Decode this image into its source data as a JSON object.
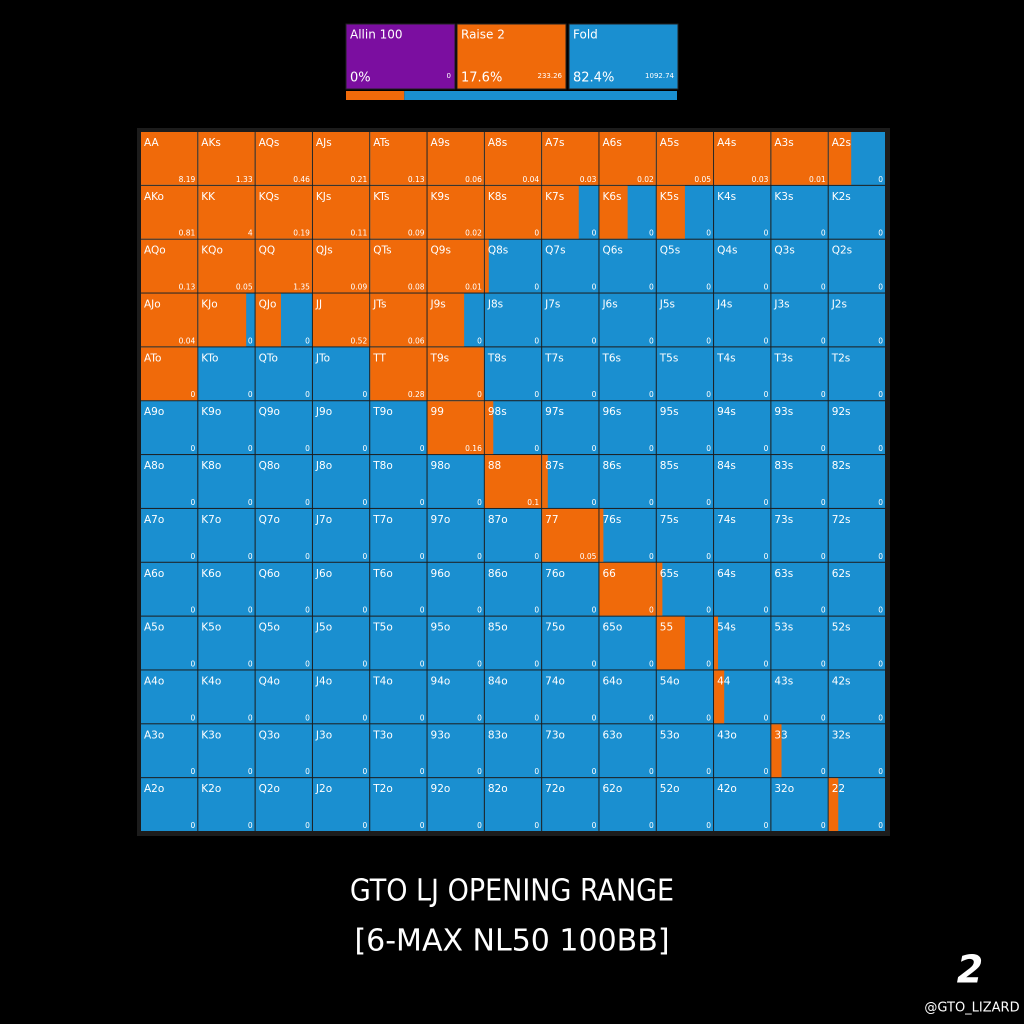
{
  "legend": [
    {
      "name": "Allin 100",
      "share": {
        "value": 0,
        "label": "0%"
      },
      "combos": 0,
      "color": "#7b0ea0"
    },
    {
      "name": "Raise 2",
      "share": {
        "value": 17.6,
        "label": "17.6%"
      },
      "combos": 233.26,
      "color": "#f06a0a"
    },
    {
      "name": "Fold",
      "share": {
        "value": 82.4,
        "label": "82.4%"
      },
      "combos": 1092.74,
      "color": "#1a8fd0"
    }
  ],
  "grid": {
    "hands": [
      [
        "AA",
        "AKs",
        "AQs",
        "AJs",
        "ATs",
        "A9s",
        "A8s",
        "A7s",
        "A6s",
        "A5s",
        "A4s",
        "A3s",
        "A2s"
      ],
      [
        "AKo",
        "KK",
        "KQs",
        "KJs",
        "KTs",
        "K9s",
        "K8s",
        "K7s",
        "K6s",
        "K5s",
        "K4s",
        "K3s",
        "K2s"
      ],
      [
        "AQo",
        "KQo",
        "QQ",
        "QJs",
        "QTs",
        "Q9s",
        "Q8s",
        "Q7s",
        "Q6s",
        "Q5s",
        "Q4s",
        "Q3s",
        "Q2s"
      ],
      [
        "AJo",
        "KJo",
        "QJo",
        "JJ",
        "JTs",
        "J9s",
        "J8s",
        "J7s",
        "J6s",
        "J5s",
        "J4s",
        "J3s",
        "J2s"
      ],
      [
        "ATo",
        "KTo",
        "QTo",
        "JTo",
        "TT",
        "T9s",
        "T8s",
        "T7s",
        "T6s",
        "T5s",
        "T4s",
        "T3s",
        "T2s"
      ],
      [
        "A9o",
        "K9o",
        "Q9o",
        "J9o",
        "T9o",
        "99",
        "98s",
        "97s",
        "96s",
        "95s",
        "94s",
        "93s",
        "92s"
      ],
      [
        "A8o",
        "K8o",
        "Q8o",
        "J8o",
        "T8o",
        "98o",
        "88",
        "87s",
        "86s",
        "85s",
        "84s",
        "83s",
        "82s"
      ],
      [
        "A7o",
        "K7o",
        "Q7o",
        "J7o",
        "T7o",
        "97o",
        "87o",
        "77",
        "76s",
        "75s",
        "74s",
        "73s",
        "72s"
      ],
      [
        "A6o",
        "K6o",
        "Q6o",
        "J6o",
        "T6o",
        "96o",
        "86o",
        "76o",
        "66",
        "65s",
        "64s",
        "63s",
        "62s"
      ],
      [
        "A5o",
        "K5o",
        "Q5o",
        "J5o",
        "T5o",
        "95o",
        "85o",
        "75o",
        "65o",
        "55",
        "54s",
        "53s",
        "52s"
      ],
      [
        "A4o",
        "K4o",
        "Q4o",
        "J4o",
        "T4o",
        "94o",
        "84o",
        "74o",
        "64o",
        "54o",
        "44",
        "43s",
        "42s"
      ],
      [
        "A3o",
        "K3o",
        "Q3o",
        "J3o",
        "T3o",
        "93o",
        "83o",
        "73o",
        "63o",
        "53o",
        "43o",
        "33",
        "32s"
      ],
      [
        "A2o",
        "K2o",
        "Q2o",
        "J2o",
        "T2o",
        "92o",
        "82o",
        "72o",
        "62o",
        "52o",
        "42o",
        "32o",
        "22"
      ]
    ],
    "ev": [
      [
        8.19,
        1.33,
        0.46,
        0.21,
        0.13,
        0.06,
        0.04,
        0.03,
        0.02,
        0.05,
        0.03,
        0.01,
        0
      ],
      [
        0.81,
        4,
        0.19,
        0.11,
        0.09,
        0.02,
        0,
        0,
        0,
        0,
        0,
        0,
        0
      ],
      [
        0.13,
        0.05,
        1.35,
        0.09,
        0.08,
        0.01,
        0,
        0,
        0,
        0,
        0,
        0,
        0
      ],
      [
        0.04,
        0,
        0,
        0.52,
        0.06,
        0,
        0,
        0,
        0,
        0,
        0,
        0,
        0
      ],
      [
        0,
        0,
        0,
        0,
        0.28,
        0,
        0,
        0,
        0,
        0,
        0,
        0,
        0
      ],
      [
        0,
        0,
        0,
        0,
        0,
        0.16,
        0,
        0,
        0,
        0,
        0,
        0,
        0
      ],
      [
        0,
        0,
        0,
        0,
        0,
        0,
        0.1,
        0,
        0,
        0,
        0,
        0,
        0
      ],
      [
        0,
        0,
        0,
        0,
        0,
        0,
        0,
        0.05,
        0,
        0,
        0,
        0,
        0
      ],
      [
        0,
        0,
        0,
        0,
        0,
        0,
        0,
        0,
        0,
        0,
        0,
        0,
        0
      ],
      [
        0,
        0,
        0,
        0,
        0,
        0,
        0,
        0,
        0,
        0,
        0,
        0,
        0
      ],
      [
        0,
        0,
        0,
        0,
        0,
        0,
        0,
        0,
        0,
        0,
        0,
        0,
        0
      ],
      [
        0,
        0,
        0,
        0,
        0,
        0,
        0,
        0,
        0,
        0,
        0,
        0,
        0
      ],
      [
        0,
        0,
        0,
        0,
        0,
        0,
        0,
        0,
        0,
        0,
        0,
        0,
        0
      ]
    ],
    "raise": [
      [
        1,
        1,
        1,
        1,
        1,
        1,
        1,
        1,
        1,
        1,
        1,
        1,
        0.4
      ],
      [
        1,
        1,
        1,
        1,
        1,
        1,
        1,
        0.65,
        0.5,
        0.5,
        0,
        0,
        0
      ],
      [
        1,
        1,
        1,
        1,
        1,
        1,
        0.07,
        0,
        0,
        0,
        0,
        0,
        0
      ],
      [
        1,
        0.85,
        0.45,
        1,
        1,
        0.65,
        0,
        0,
        0,
        0,
        0,
        0,
        0
      ],
      [
        1,
        0,
        0,
        0,
        1,
        1,
        0,
        0,
        0,
        0,
        0,
        0,
        0
      ],
      [
        0,
        0,
        0,
        0,
        0,
        1,
        0.15,
        0,
        0,
        0,
        0,
        0,
        0
      ],
      [
        0,
        0,
        0,
        0,
        0,
        0,
        1,
        0.1,
        0,
        0,
        0,
        0,
        0
      ],
      [
        0,
        0,
        0,
        0,
        0,
        0,
        0,
        1,
        0.07,
        0,
        0,
        0,
        0
      ],
      [
        0,
        0,
        0,
        0,
        0,
        0,
        0,
        0,
        1,
        0.1,
        0,
        0,
        0
      ],
      [
        0,
        0,
        0,
        0,
        0,
        0,
        0,
        0,
        0,
        0.5,
        0.07,
        0,
        0
      ],
      [
        0,
        0,
        0,
        0,
        0,
        0,
        0,
        0,
        0,
        0,
        0.18,
        0,
        0
      ],
      [
        0,
        0,
        0,
        0,
        0,
        0,
        0,
        0,
        0,
        0,
        0,
        0.18,
        0
      ],
      [
        0,
        0,
        0,
        0,
        0,
        0,
        0,
        0,
        0,
        0,
        0,
        0,
        0.17
      ]
    ]
  },
  "title": "GTO LJ OPENING RANGE",
  "subtitle": "[6-MAX NL50 100BB]",
  "page_number": "2",
  "handle": "@GTO_LIZARD"
}
